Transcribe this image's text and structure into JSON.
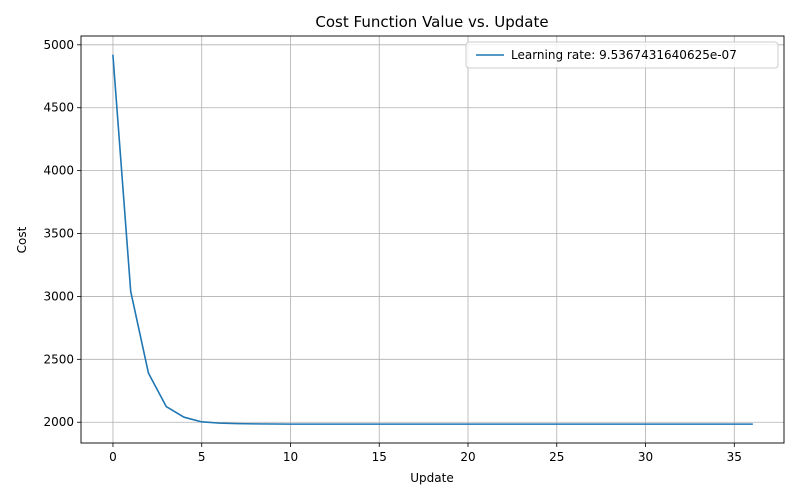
{
  "chart_data": {
    "type": "line",
    "title": "Cost Function Value vs. Update",
    "xlabel": "Update",
    "ylabel": "Cost",
    "xlim": [
      -1.8,
      37.8
    ],
    "ylim": [
      1835,
      5070
    ],
    "xticks": [
      0,
      5,
      10,
      15,
      20,
      25,
      30,
      35
    ],
    "yticks": [
      2000,
      2500,
      3000,
      3500,
      4000,
      4500,
      5000
    ],
    "grid": true,
    "legend_position": "top-right",
    "series": [
      {
        "name": "Learning rate: 9.5367431640625e-07",
        "color": "#1f77b4",
        "x": [
          0,
          1,
          2,
          3,
          4,
          5,
          6,
          7,
          8,
          9,
          10,
          11,
          12,
          13,
          14,
          15,
          16,
          17,
          18,
          19,
          20,
          21,
          22,
          23,
          24,
          25,
          26,
          27,
          28,
          29,
          30,
          31,
          32,
          33,
          34,
          35,
          36
        ],
        "y": [
          4915,
          3040,
          2390,
          2125,
          2040,
          2003,
          1993,
          1989,
          1987,
          1986,
          1985,
          1985,
          1985,
          1985,
          1985,
          1985,
          1985,
          1985,
          1985,
          1985,
          1985,
          1985,
          1985,
          1985,
          1985,
          1985,
          1985,
          1985,
          1985,
          1985,
          1985,
          1985,
          1985,
          1985,
          1985,
          1985,
          1985
        ]
      }
    ]
  }
}
